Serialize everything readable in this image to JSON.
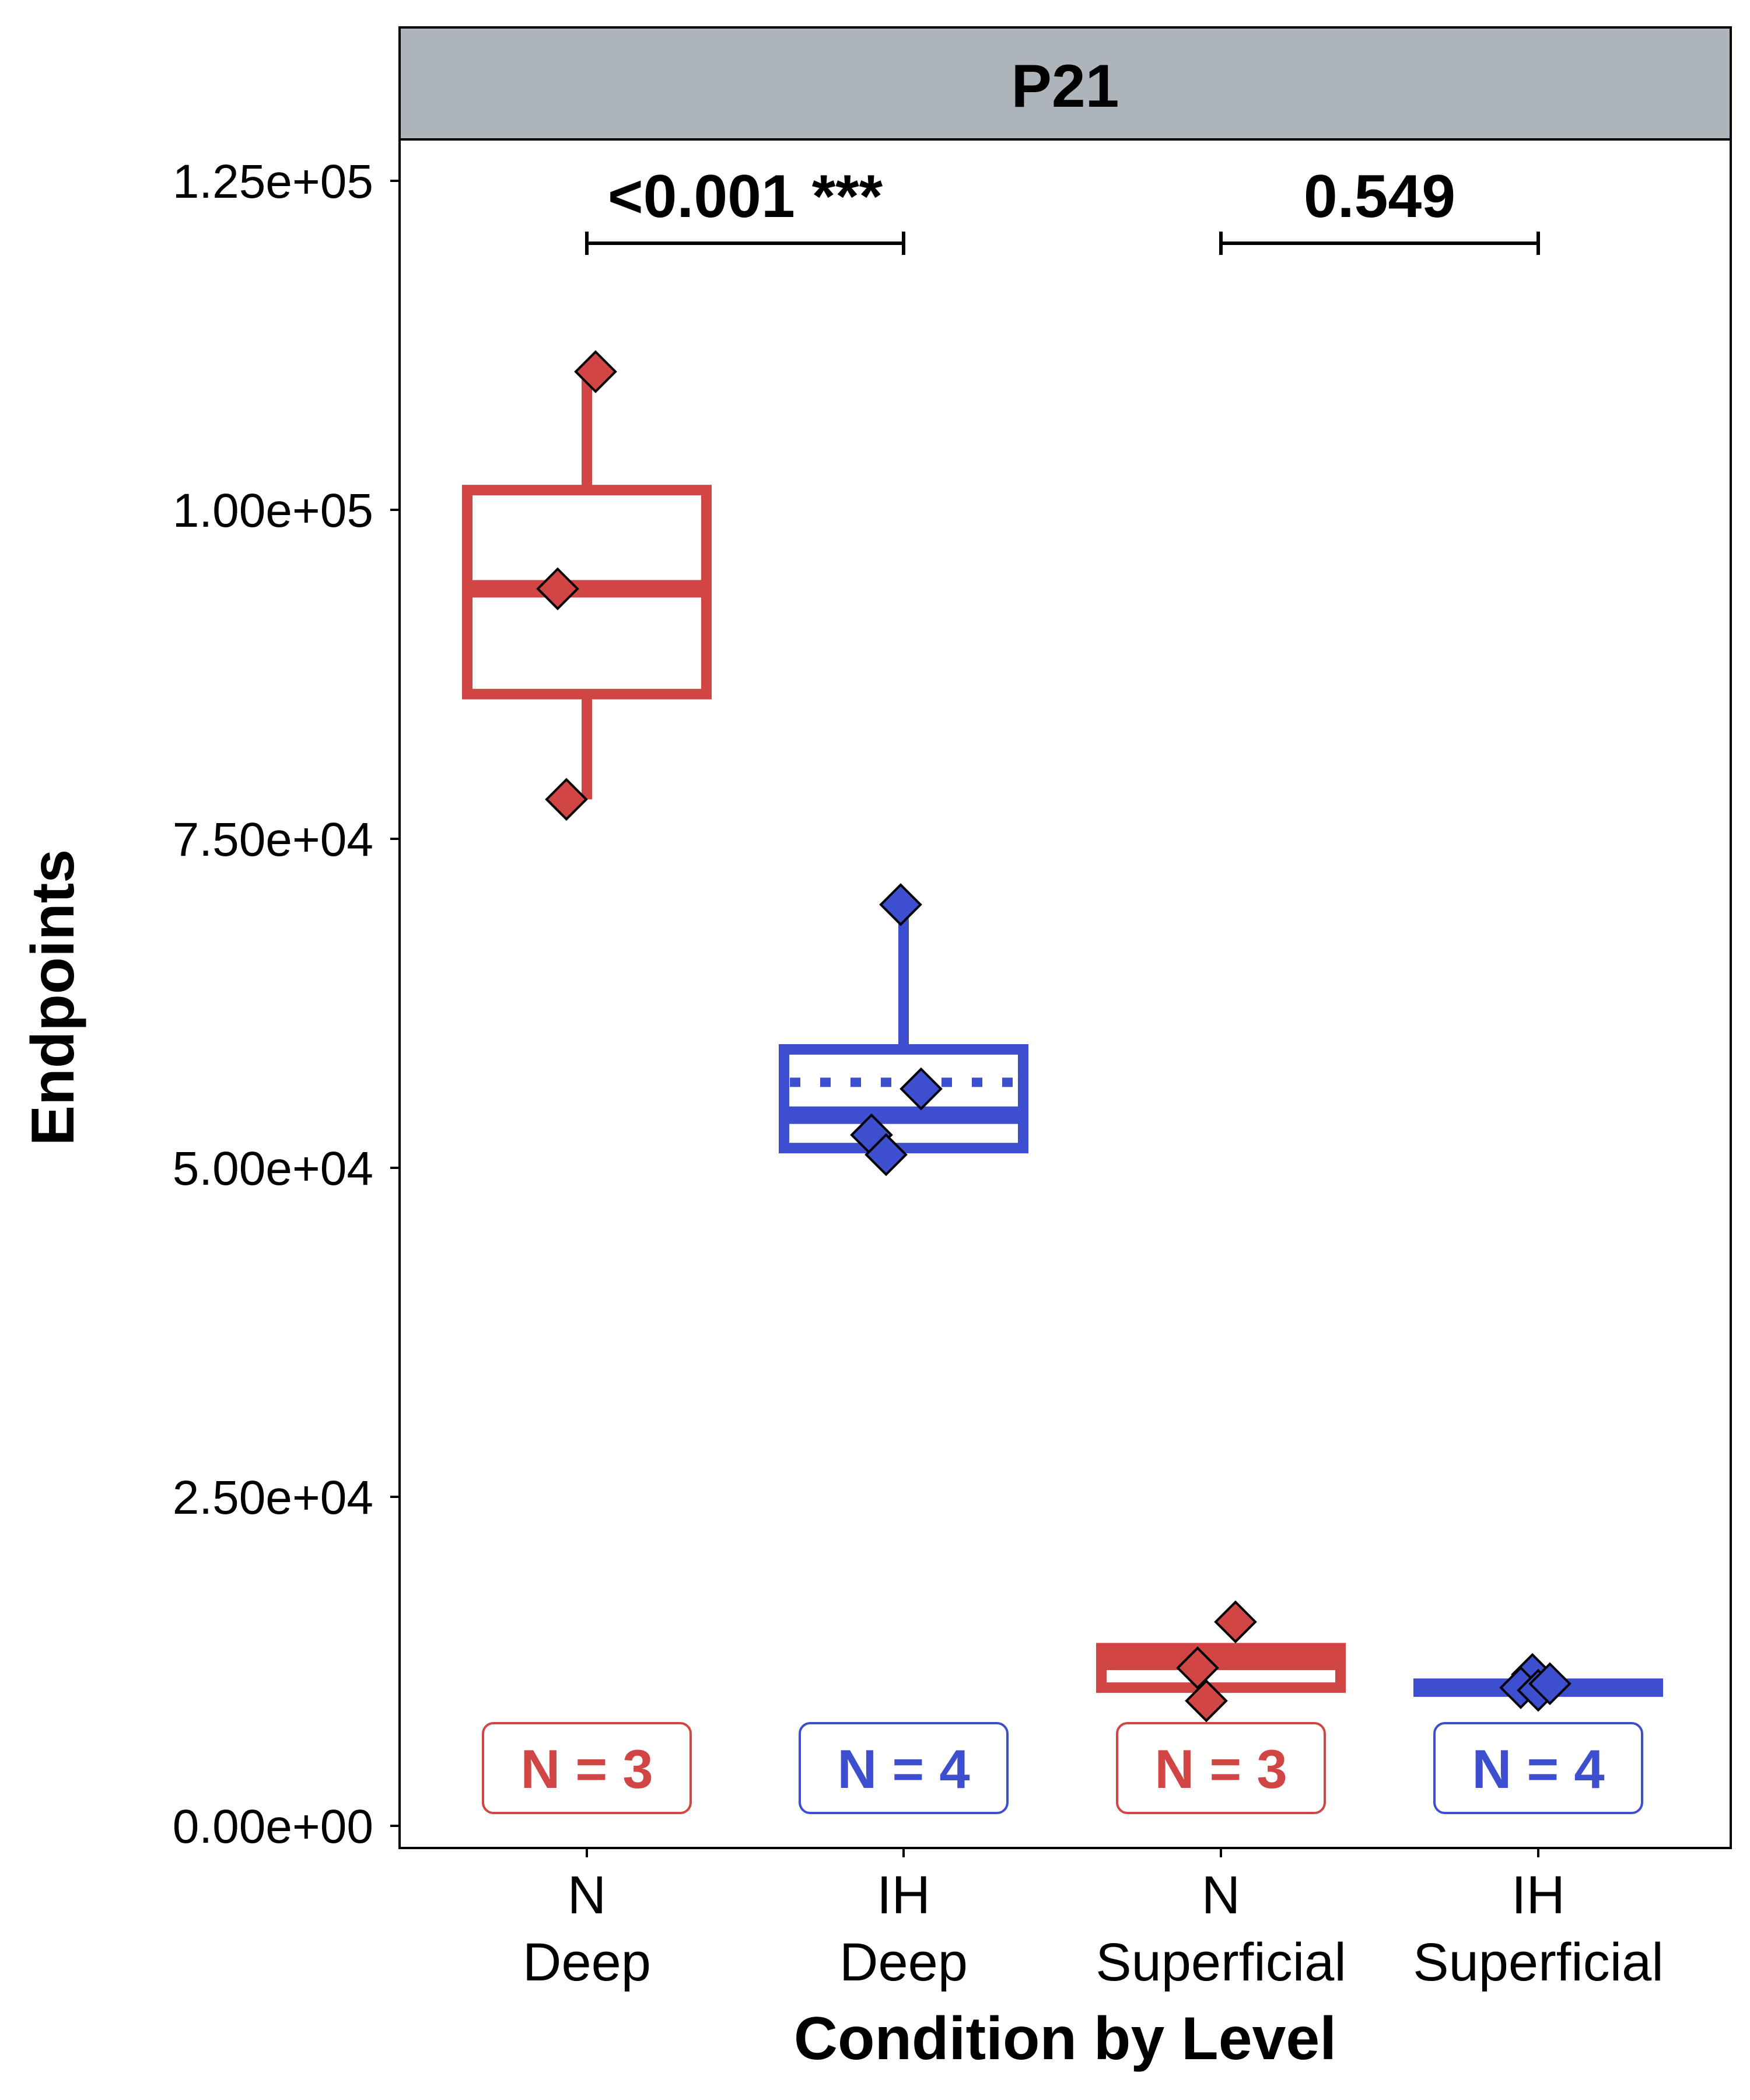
{
  "chart_data": {
    "type": "box",
    "facet_label": "P21",
    "xlabel": "Condition by Level",
    "ylabel": "Endpoints",
    "ylim": [
      0,
      125000
    ],
    "y_ticks": [
      0,
      25000,
      50000,
      75000,
      100000,
      125000
    ],
    "y_tick_labels": [
      "0.00e+00",
      "2.50e+04",
      "5.00e+04",
      "7.50e+04",
      "1.00e+05",
      "1.25e+05"
    ],
    "categories": [
      {
        "line1": "N",
        "line2": "Deep"
      },
      {
        "line1": "IH",
        "line2": "Deep"
      },
      {
        "line1": "N",
        "line2": "Superficial"
      },
      {
        "line1": "IH",
        "line2": "Superficial"
      }
    ],
    "boxes": [
      {
        "color": "#d24545",
        "q1": 86000,
        "median": 94000,
        "mean": 94000,
        "q3": 101500,
        "whisker_low": 78000,
        "whisker_high": 110500,
        "points": [
          110500,
          94000,
          78000
        ],
        "n_label": "N = 3"
      },
      {
        "color": "#3d4fcf",
        "q1": 51500,
        "median": 54000,
        "mean": 56500,
        "q3": 59000,
        "whisker_low": 51500,
        "whisker_high": 70000,
        "points": [
          70000,
          56000,
          52500,
          51000
        ],
        "n_label": "N = 4"
      },
      {
        "color": "#d24545",
        "q1": 10500,
        "median": 12500,
        "mean": 12200,
        "q3": 13500,
        "whisker_low": 10500,
        "whisker_high": 13500,
        "points": [
          15500,
          12000,
          9500
        ],
        "n_label": "N = 3"
      },
      {
        "color": "#3d4fcf",
        "q1": 10200,
        "median": 10500,
        "mean": 10500,
        "q3": 10800,
        "whisker_low": 10200,
        "whisker_high": 10800,
        "points": [
          11500,
          10500,
          10300,
          10800
        ],
        "n_label": "N = 4"
      }
    ],
    "comparisons": [
      {
        "from": 0,
        "to": 1,
        "label": "<0.001 ***"
      },
      {
        "from": 2,
        "to": 3,
        "label": "0.549"
      }
    ]
  }
}
